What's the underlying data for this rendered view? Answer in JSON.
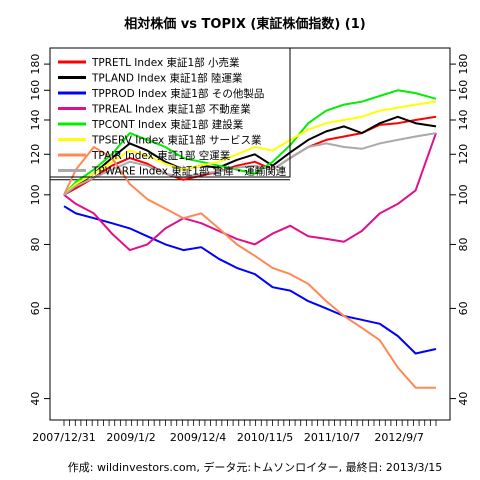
{
  "chart_data": {
    "type": "line",
    "title": "相対株価 vs TOPIX (東証株価指数) (1)",
    "caption": "作成: wildinvestors.com, データ元:トムソンロイター, 最終日: 2013/3/15",
    "xlabel": "",
    "ylabel": "",
    "x_tick_labels": [
      "2007/12/31",
      "2009/1/2",
      "2009/12/4",
      "2010/11/5",
      "2011/10/7",
      "2012/9/7"
    ],
    "x_range": [
      "2007-12-31",
      "2013-03-15"
    ],
    "ylim": [
      38,
      185
    ],
    "y_scale": "log",
    "y_ticks": [
      40,
      60,
      80,
      100,
      120,
      140,
      160,
      180
    ],
    "reference_line": 107,
    "grid": false,
    "legend_position": "top-left",
    "series": [
      {
        "name": "TPRETL Index 東証1部 小売業",
        "color": "#ff0000",
        "x": [
          "2007-12-31",
          "2008-03-01",
          "2008-06-01",
          "2008-09-01",
          "2008-12-01",
          "2009-03-01",
          "2009-06-01",
          "2009-09-01",
          "2009-12-01",
          "2010-03-01",
          "2010-06-01",
          "2010-09-01",
          "2010-12-01",
          "2011-03-01",
          "2011-06-01",
          "2011-09-01",
          "2011-12-01",
          "2012-03-01",
          "2012-06-01",
          "2012-09-01",
          "2012-12-01",
          "2013-03-15"
        ],
        "y": [
          100,
          103,
          108,
          114,
          118,
          115,
          110,
          107,
          109,
          111,
          114,
          116,
          112,
          118,
          124,
          128,
          130,
          132,
          137,
          138,
          140,
          142
        ]
      },
      {
        "name": "TPLAND Index 東証1部 陸運業",
        "color": "#000000",
        "x": [
          "2007-12-31",
          "2008-03-01",
          "2008-06-01",
          "2008-09-01",
          "2008-12-01",
          "2009-03-01",
          "2009-06-01",
          "2009-09-01",
          "2009-12-01",
          "2010-03-01",
          "2010-06-01",
          "2010-09-01",
          "2010-12-01",
          "2011-03-01",
          "2011-06-01",
          "2011-09-01",
          "2011-12-01",
          "2012-03-01",
          "2012-06-01",
          "2012-09-01",
          "2012-12-01",
          "2013-03-15"
        ],
        "y": [
          100,
          104,
          110,
          118,
          126,
          122,
          116,
          112,
          114,
          113,
          117,
          120,
          114,
          121,
          128,
          133,
          136,
          132,
          138,
          142,
          138,
          136
        ]
      },
      {
        "name": "TPPROD Index 東証1部 その他製品",
        "color": "#0000ff",
        "x": [
          "2007-12-31",
          "2008-03-01",
          "2008-06-01",
          "2008-09-01",
          "2008-12-01",
          "2009-03-01",
          "2009-06-01",
          "2009-09-01",
          "2009-12-01",
          "2010-03-01",
          "2010-06-01",
          "2010-09-01",
          "2010-12-01",
          "2011-03-01",
          "2011-06-01",
          "2011-09-01",
          "2011-12-01",
          "2012-03-01",
          "2012-06-01",
          "2012-09-01",
          "2012-12-01",
          "2013-03-15"
        ],
        "y": [
          95,
          92,
          90,
          88,
          86,
          83,
          80,
          78,
          79,
          75,
          72,
          70,
          66,
          65,
          62,
          60,
          58,
          57,
          56,
          53,
          49,
          50
        ]
      },
      {
        "name": "TPREAL Index 東証1部 不動産業",
        "color": "#e0108c",
        "x": [
          "2007-12-31",
          "2008-03-01",
          "2008-06-01",
          "2008-09-01",
          "2008-12-01",
          "2009-03-01",
          "2009-06-01",
          "2009-09-01",
          "2009-12-01",
          "2010-03-01",
          "2010-06-01",
          "2010-09-01",
          "2010-12-01",
          "2011-03-01",
          "2011-06-01",
          "2011-09-01",
          "2011-12-01",
          "2012-03-01",
          "2012-06-01",
          "2012-09-01",
          "2012-12-01",
          "2013-03-15"
        ],
        "y": [
          100,
          96,
          92,
          84,
          78,
          80,
          86,
          90,
          88,
          85,
          82,
          80,
          84,
          87,
          83,
          82,
          81,
          85,
          92,
          96,
          102,
          132
        ]
      },
      {
        "name": "TPCONT Index 東証1部 建設業",
        "color": "#00ee00",
        "x": [
          "2007-12-31",
          "2008-03-01",
          "2008-06-01",
          "2008-09-01",
          "2008-12-01",
          "2009-03-01",
          "2009-06-01",
          "2009-09-01",
          "2009-12-01",
          "2010-03-01",
          "2010-06-01",
          "2010-09-01",
          "2010-12-01",
          "2011-03-01",
          "2011-06-01",
          "2011-09-01",
          "2011-12-01",
          "2012-03-01",
          "2012-06-01",
          "2012-09-01",
          "2012-12-01",
          "2013-03-15"
        ],
        "y": [
          100,
          106,
          112,
          120,
          132,
          128,
          124,
          118,
          116,
          114,
          112,
          110,
          116,
          125,
          138,
          146,
          150,
          152,
          156,
          160,
          158,
          154
        ]
      },
      {
        "name": "TPSERV Index 東証1部 サービス業",
        "color": "#ffff00",
        "x": [
          "2007-12-31",
          "2008-03-01",
          "2008-06-01",
          "2008-09-01",
          "2008-12-01",
          "2009-03-01",
          "2009-06-01",
          "2009-09-01",
          "2009-12-01",
          "2010-03-01",
          "2010-06-01",
          "2010-09-01",
          "2010-12-01",
          "2011-03-01",
          "2011-06-01",
          "2011-09-01",
          "2011-12-01",
          "2012-03-01",
          "2012-06-01",
          "2012-09-01",
          "2012-12-01",
          "2013-03-15"
        ],
        "y": [
          100,
          105,
          110,
          116,
          122,
          119,
          115,
          112,
          114,
          116,
          120,
          124,
          122,
          128,
          134,
          138,
          140,
          142,
          146,
          148,
          150,
          152
        ]
      },
      {
        "name": "TPAIR Index 東証1部 空運業",
        "color": "#ff8855",
        "x": [
          "2007-12-31",
          "2008-03-01",
          "2008-06-01",
          "2008-09-01",
          "2008-12-01",
          "2009-03-01",
          "2009-06-01",
          "2009-09-01",
          "2009-12-01",
          "2010-03-01",
          "2010-06-01",
          "2010-09-01",
          "2010-12-01",
          "2011-03-01",
          "2011-06-01",
          "2011-09-01",
          "2011-12-01",
          "2012-03-01",
          "2012-06-01",
          "2012-09-01",
          "2012-12-01",
          "2013-03-15"
        ],
        "y": [
          100,
          112,
          124,
          118,
          105,
          98,
          94,
          90,
          92,
          86,
          80,
          76,
          72,
          70,
          67,
          62,
          58,
          55,
          52,
          46,
          42,
          42
        ]
      },
      {
        "name": "TPWARE Index 東証1部 倉庫・運輸関連",
        "color": "#aaaaaa",
        "x": [
          "2007-12-31",
          "2008-03-01",
          "2008-06-01",
          "2008-09-01",
          "2008-12-01",
          "2009-03-01",
          "2009-06-01",
          "2009-09-01",
          "2009-12-01",
          "2010-03-01",
          "2010-06-01",
          "2010-09-01",
          "2010-12-01",
          "2011-03-01",
          "2011-06-01",
          "2011-09-01",
          "2011-12-01",
          "2012-03-01",
          "2012-06-01",
          "2012-09-01",
          "2012-12-01",
          "2013-03-15"
        ],
        "y": [
          100,
          104,
          108,
          112,
          116,
          114,
          110,
          108,
          110,
          111,
          113,
          114,
          112,
          118,
          124,
          126,
          124,
          123,
          126,
          128,
          130,
          132
        ]
      }
    ]
  }
}
